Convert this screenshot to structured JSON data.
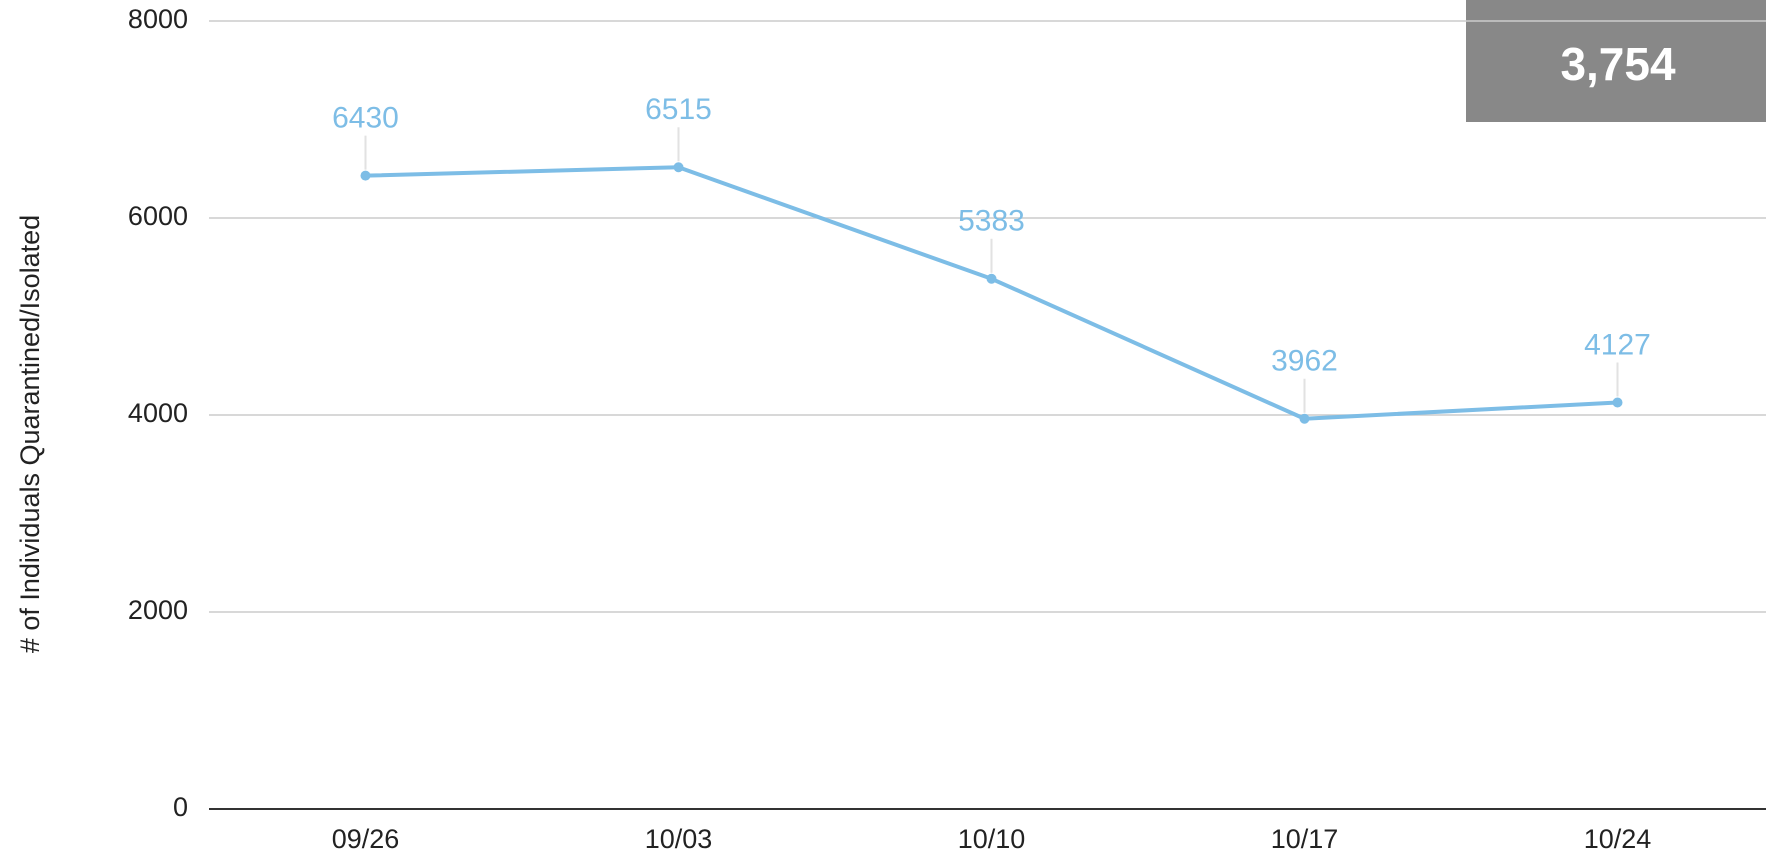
{
  "chart_data": {
    "type": "line",
    "y_label": "# of Individuals Quarantined/Isolated",
    "categories": [
      "09/26",
      "10/03",
      "10/10",
      "10/17",
      "10/24"
    ],
    "series": [
      {
        "color": "#7dbde6",
        "values": [
          6430,
          6515,
          5383,
          3962,
          4127
        ]
      }
    ],
    "ylim": [
      0,
      8000
    ],
    "yticks": [
      0,
      2000,
      4000,
      6000,
      8000
    ],
    "grid": true,
    "annotations": [
      "3,754"
    ]
  }
}
